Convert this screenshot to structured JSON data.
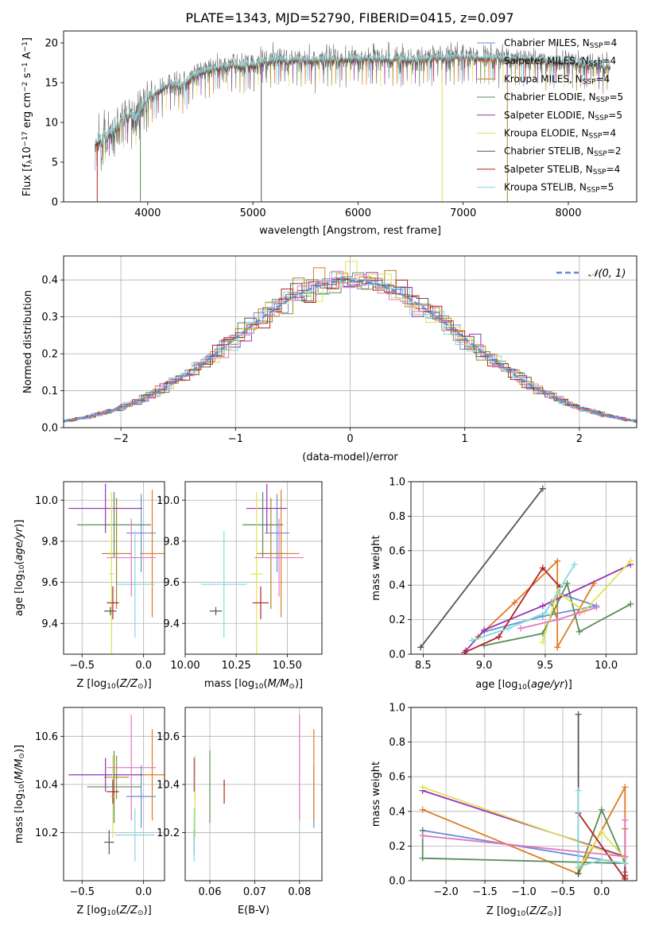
{
  "figure_title": "PLATE=1343, MJD=52790, FIBERID=0415, z=0.097",
  "colors": {
    "grid": "#b0b0b0",
    "series": [
      "#6a8fd6",
      "#e07b20",
      "#a8852a",
      "#5b8c5a",
      "#9a2fb4",
      "#dfe34f",
      "#555555",
      "#b22222",
      "#7fdbe0",
      "#e377c2"
    ],
    "normal_line": "#5b8fd6"
  },
  "chart_data": [
    {
      "id": "spectrum",
      "type": "line",
      "xlabel": "wavelength [Angstrom, rest frame]",
      "ylabel": "Flux [f_λ 10^-17 erg cm^-2 s^-1 A^-1]",
      "xlim": [
        3200,
        8650
      ],
      "ylim": [
        0,
        21.5
      ],
      "xticks": [
        4000,
        5000,
        6000,
        7000,
        8000
      ],
      "yticks": [
        0,
        5,
        10,
        15,
        20
      ],
      "legend_position": "upper-right",
      "series": [
        {
          "name": "Chabrier MILES, N_SSP=4",
          "color": "#6a8fd6"
        },
        {
          "name": "Salpeter MILES, N_SSP=4",
          "color": "#e07b20"
        },
        {
          "name": "Kroupa MILES, N_SSP=4",
          "color": "#a8852a"
        },
        {
          "name": "Chabrier ELODIE, N_SSP=5",
          "color": "#5b8c5a"
        },
        {
          "name": "Salpeter ELODIE, N_SSP=5",
          "color": "#9a2fb4"
        },
        {
          "name": "Kroupa ELODIE, N_SSP=4",
          "color": "#dfe34f"
        },
        {
          "name": "Chabrier STELIB, N_SSP=2",
          "color": "#555555"
        },
        {
          "name": "Salpeter STELIB, N_SSP=4",
          "color": "#b22222"
        },
        {
          "name": "Kroupa STELIB, N_SSP=5",
          "color": "#7fdbe0"
        }
      ],
      "continuum": {
        "x": [
          3500,
          3600,
          3700,
          3800,
          3900,
          3950,
          4000,
          4100,
          4200,
          4300,
          4400,
          4500,
          4700,
          5000,
          5200,
          5500,
          6000,
          6500,
          7000,
          7500,
          8000,
          8400
        ],
        "y": [
          7.5,
          8.2,
          9.5,
          11.0,
          10.5,
          12.0,
          13.0,
          14.0,
          14.8,
          14.5,
          15.5,
          16.2,
          17.0,
          17.2,
          17.8,
          17.8,
          18.0,
          17.8,
          18.2,
          17.9,
          17.6,
          17.0
        ]
      }
    },
    {
      "id": "residuals",
      "type": "bar",
      "xlabel": "(data-model)/error",
      "ylabel": "Normed distribution",
      "xlim": [
        -2.5,
        2.5
      ],
      "ylim": [
        0,
        0.465
      ],
      "xticks": [
        -2,
        -1,
        0,
        1,
        2
      ],
      "yticks": [
        0.0,
        0.1,
        0.2,
        0.3,
        0.4
      ],
      "legend": [
        {
          "name": "𝒩(0, 1)",
          "style": "dashed"
        }
      ],
      "bin_width": 0.1,
      "hist_count": 10
    },
    {
      "id": "age_vs_Z",
      "type": "scatter",
      "xlabel": "Z [log10(Z/Z⊙)]",
      "ylabel": "age  [log10(age/yr)]",
      "xlim": [
        -0.65,
        0.17
      ],
      "ylim": [
        9.25,
        10.09
      ],
      "xticks": [
        -0.5,
        0.0
      ],
      "xtick_labels": [
        "−0.5",
        "0.0"
      ],
      "yticks": [
        9.4,
        9.6,
        9.8,
        10.0
      ],
      "points": [
        {
          "x": -0.02,
          "y": 9.84,
          "xerr": 0.12,
          "yerr": 0.19
        },
        {
          "x": 0.07,
          "y": 9.74,
          "xerr": 0.1,
          "yerr": 0.31
        },
        {
          "x": -0.22,
          "y": 9.74,
          "xerr": 0.12,
          "yerr": 0.27
        },
        {
          "x": -0.24,
          "y": 9.88,
          "xerr": 0.3,
          "yerr": 0.16
        },
        {
          "x": -0.31,
          "y": 9.96,
          "xerr": 0.3,
          "yerr": 0.12
        },
        {
          "x": -0.26,
          "y": 9.64,
          "xerr": 0.02,
          "yerr": 0.4
        },
        {
          "x": -0.27,
          "y": 9.46,
          "xerr": 0.05,
          "yerr": 0.02
        },
        {
          "x": -0.25,
          "y": 9.5,
          "xerr": 0.05,
          "yerr": 0.08
        },
        {
          "x": -0.07,
          "y": 9.59,
          "xerr": 0.16,
          "yerr": 0.26
        },
        {
          "x": -0.1,
          "y": 9.72,
          "xerr": 0.2,
          "yerr": 0.19
        }
      ]
    },
    {
      "id": "age_vs_mass",
      "type": "scatter",
      "xlabel": "mass [log10(M/M⊙)]",
      "ylabel": "",
      "xlim": [
        10.0,
        10.67
      ],
      "ylim": [
        9.25,
        10.09
      ],
      "xticks": [
        10.0,
        10.25,
        10.5
      ],
      "xtick_labels": [
        "10.00",
        "10.25",
        "10.50"
      ],
      "yticks": [
        9.4,
        9.6,
        9.8,
        10.0
      ],
      "points": [
        {
          "x": 10.45,
          "y": 9.84,
          "xerr": 0.06,
          "yerr": 0.19
        },
        {
          "x": 10.47,
          "y": 9.74,
          "xerr": 0.09,
          "yerr": 0.31
        },
        {
          "x": 10.42,
          "y": 9.74,
          "xerr": 0.07,
          "yerr": 0.27
        },
        {
          "x": 10.38,
          "y": 9.88,
          "xerr": 0.1,
          "yerr": 0.16
        },
        {
          "x": 10.4,
          "y": 9.96,
          "xerr": 0.1,
          "yerr": 0.12
        },
        {
          "x": 10.35,
          "y": 9.64,
          "xerr": 0.03,
          "yerr": 0.4
        },
        {
          "x": 10.15,
          "y": 9.46,
          "xerr": 0.03,
          "yerr": 0.02
        },
        {
          "x": 10.37,
          "y": 9.5,
          "xerr": 0.04,
          "yerr": 0.08
        },
        {
          "x": 10.19,
          "y": 9.59,
          "xerr": 0.11,
          "yerr": 0.26
        },
        {
          "x": 10.46,
          "y": 9.72,
          "xerr": 0.12,
          "yerr": 0.19
        }
      ]
    },
    {
      "id": "weights_vs_age",
      "type": "line",
      "xlabel": "age  [log10(age/yr)]",
      "ylabel": "mass weight",
      "xlim": [
        8.4,
        10.25
      ],
      "ylim": [
        0,
        1.0
      ],
      "xticks": [
        8.5,
        9.0,
        9.5,
        10.0
      ],
      "yticks": [
        0.0,
        0.2,
        0.4,
        0.6,
        0.8,
        1.0
      ],
      "series": [
        {
          "x": [
            9.0,
            9.48,
            9.92,
            9.62
          ],
          "y": [
            0.13,
            0.22,
            0.28,
            0.35
          ]
        },
        {
          "x": [
            8.95,
            9.25,
            9.6,
            9.6,
            9.9
          ],
          "y": [
            0.1,
            0.3,
            0.54,
            0.04,
            0.41
          ]
        },
        {
          "x": [
            9.55,
            9.6
          ],
          "y": [
            0.3,
            0.2
          ]
        },
        {
          "x": [
            9.0,
            9.48,
            9.68,
            9.78,
            10.2
          ],
          "y": [
            0.05,
            0.12,
            0.41,
            0.13,
            0.29
          ]
        },
        {
          "x": [
            8.85,
            9.0,
            9.48,
            10.2
          ],
          "y": [
            0.02,
            0.14,
            0.28,
            0.52
          ]
        },
        {
          "x": [
            9.48,
            9.6,
            9.82,
            10.2
          ],
          "y": [
            0.07,
            0.36,
            0.25,
            0.54
          ]
        },
        {
          "x": [
            8.48,
            9.48
          ],
          "y": [
            0.04,
            0.96
          ]
        },
        {
          "x": [
            8.84,
            9.12,
            9.48,
            9.62
          ],
          "y": [
            0.01,
            0.1,
            0.5,
            0.39
          ]
        },
        {
          "x": [
            8.9,
            9.2,
            9.5,
            9.74
          ],
          "y": [
            0.08,
            0.15,
            0.24,
            0.52
          ]
        },
        {
          "x": [
            9.3,
            9.6,
            9.78,
            9.92
          ],
          "y": [
            0.15,
            0.2,
            0.24,
            0.27
          ]
        }
      ]
    },
    {
      "id": "mass_vs_Z",
      "type": "scatter",
      "xlabel": "Z [log10(Z/Z⊙)]",
      "ylabel": "mass [log10(M/M⊙)]",
      "xlim": [
        -0.65,
        0.17
      ],
      "ylim": [
        10.0,
        10.72
      ],
      "xticks": [
        -0.5,
        0.0
      ],
      "xtick_labels": [
        "−0.5",
        "0.0"
      ],
      "yticks": [
        10.2,
        10.4,
        10.6
      ],
      "points": [
        {
          "x": -0.02,
          "y": 10.35,
          "xerr": 0.12,
          "yerr": 0.13
        },
        {
          "x": 0.07,
          "y": 10.44,
          "xerr": 0.1,
          "yerr": 0.19
        },
        {
          "x": -0.22,
          "y": 10.43,
          "xerr": 0.1,
          "yerr": 0.09
        },
        {
          "x": -0.24,
          "y": 10.39,
          "xerr": 0.22,
          "yerr": 0.15
        },
        {
          "x": -0.31,
          "y": 10.44,
          "xerr": 0.3,
          "yerr": 0.07
        },
        {
          "x": -0.25,
          "y": 10.35,
          "xerr": 0.02,
          "yerr": 0.17
        },
        {
          "x": -0.28,
          "y": 10.16,
          "xerr": 0.04,
          "yerr": 0.05
        },
        {
          "x": -0.25,
          "y": 10.37,
          "xerr": 0.05,
          "yerr": 0.05
        },
        {
          "x": -0.07,
          "y": 10.19,
          "xerr": 0.16,
          "yerr": 0.11
        },
        {
          "x": -0.1,
          "y": 10.47,
          "xerr": 0.2,
          "yerr": 0.22
        }
      ]
    },
    {
      "id": "mass_vs_EBV",
      "type": "scatter",
      "xlabel": "E(B-V)",
      "ylabel": "",
      "xlim": [
        0.0545,
        0.085
      ],
      "ylim": [
        10.0,
        10.72
      ],
      "xticks": [
        0.06,
        0.07,
        0.08
      ],
      "xtick_labels": [
        "0.06",
        "0.07",
        "0.08"
      ],
      "yticks": [
        10.2,
        10.4,
        10.6
      ],
      "points": [
        {
          "x": 0.0832,
          "y": 10.35,
          "xerr": 0,
          "yerr": 0.13
        },
        {
          "x": 0.0832,
          "y": 10.44,
          "xerr": 0,
          "yerr": 0.19
        },
        {
          "x": 0.0567,
          "y": 10.43,
          "xerr": 0,
          "yerr": 0.09
        },
        {
          "x": 0.06,
          "y": 10.39,
          "xerr": 0,
          "yerr": 0.15
        },
        {
          "x": 0.0565,
          "y": 10.44,
          "xerr": 0,
          "yerr": 0.07
        },
        {
          "x": 0.0567,
          "y": 10.35,
          "xerr": 0,
          "yerr": 0.17
        },
        {
          "x": 0.0565,
          "y": 10.16,
          "xerr": 0,
          "yerr": 0.05
        },
        {
          "x": 0.0632,
          "y": 10.37,
          "xerr": 0,
          "yerr": 0.05
        },
        {
          "x": 0.0565,
          "y": 10.19,
          "xerr": 0,
          "yerr": 0.11
        },
        {
          "x": 0.08,
          "y": 10.47,
          "xerr": 0,
          "yerr": 0.22
        }
      ]
    },
    {
      "id": "weights_vs_Z",
      "type": "line",
      "xlabel": "Z [log10(Z/Z⊙)]",
      "ylabel": "mass weight",
      "xlim": [
        -2.45,
        0.45
      ],
      "ylim": [
        0,
        1.0
      ],
      "xticks": [
        -2.0,
        -1.5,
        -1.0,
        -0.5,
        0.0
      ],
      "xtick_labels": [
        "−2.0",
        "−1.5",
        "−1.0",
        "−0.5",
        "0.0"
      ],
      "yticks": [
        0.0,
        0.2,
        0.4,
        0.6,
        0.8,
        1.0
      ],
      "series": [
        {
          "x": [
            -2.3,
            0.3,
            0.3
          ],
          "y": [
            0.29,
            0.1,
            0.05
          ]
        },
        {
          "x": [
            -2.3,
            -0.3,
            0.3,
            0.3
          ],
          "y": [
            0.41,
            0.04,
            0.54,
            0.02
          ]
        },
        {
          "x": [
            0.3,
            0.3
          ],
          "y": [
            0.3,
            0.1
          ]
        },
        {
          "x": [
            -2.3,
            -2.3,
            0.3,
            0.0,
            -0.3
          ],
          "y": [
            0.29,
            0.13,
            0.1,
            0.41,
            0.04
          ]
        },
        {
          "x": [
            -2.3,
            0.3,
            0.3
          ],
          "y": [
            0.52,
            0.14,
            0.03
          ]
        },
        {
          "x": [
            -2.3,
            0.3,
            0.0,
            -0.3
          ],
          "y": [
            0.54,
            0.13,
            0.28,
            0.07
          ]
        },
        {
          "x": [
            -0.3,
            -0.3
          ],
          "y": [
            0.04,
            0.96
          ]
        },
        {
          "x": [
            -0.3,
            0.3,
            0.3
          ],
          "y": [
            0.39,
            0.01,
            0.1
          ]
        },
        {
          "x": [
            -0.3,
            -0.3,
            0.0,
            0.3
          ],
          "y": [
            0.52,
            0.08,
            0.12,
            0.1
          ]
        },
        {
          "x": [
            -2.3,
            0.3,
            0.3
          ],
          "y": [
            0.26,
            0.14,
            0.35
          ]
        }
      ]
    }
  ]
}
